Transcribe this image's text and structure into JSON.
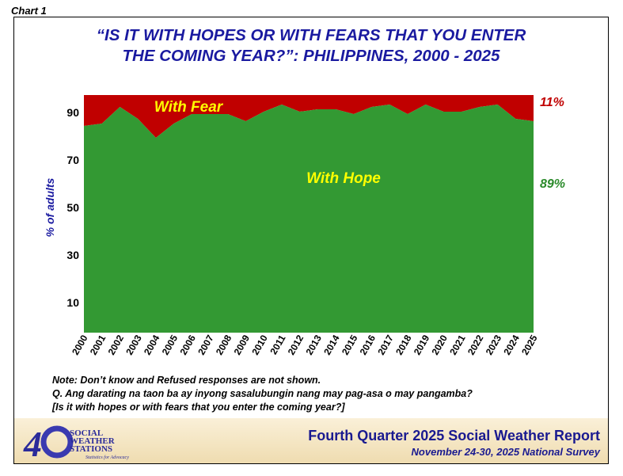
{
  "chart_label": "Chart 1",
  "chart_data": {
    "type": "area",
    "title": "“IS IT WITH HOPES OR WITH FEARS THAT YOU ENTER THE COMING YEAR?”: PHILIPPINES, 2000 - 2025",
    "title_lines": [
      "“IS IT WITH HOPES OR WITH FEARS THAT YOU ENTER",
      "THE COMING YEAR?”: PHILIPPINES, 2000 - 2025"
    ],
    "ylabel": "% of adults",
    "yticks": [
      10,
      30,
      50,
      70,
      90
    ],
    "ylim": [
      0,
      100
    ],
    "categories": [
      "2000",
      "2001",
      "2002",
      "2003",
      "2004",
      "2005",
      "2006",
      "2007",
      "2008",
      "2009",
      "2010",
      "2011",
      "2012",
      "2013",
      "2014",
      "2015",
      "2016",
      "2017",
      "2018",
      "2019",
      "2020",
      "2021",
      "2022",
      "2023",
      "2024",
      "2025"
    ],
    "series": [
      {
        "name": "With Hope",
        "color": "#339933",
        "values": [
          87,
          88,
          95,
          90,
          82,
          88,
          92,
          92,
          92,
          89,
          93,
          96,
          93,
          94,
          94,
          92,
          95,
          96,
          92,
          96,
          93,
          93,
          95,
          96,
          90,
          89
        ]
      },
      {
        "name": "With Fear",
        "color": "#c00000",
        "values": [
          13,
          12,
          5,
          10,
          18,
          12,
          8,
          8,
          8,
          11,
          7,
          4,
          7,
          6,
          6,
          8,
          5,
          4,
          8,
          4,
          7,
          7,
          5,
          4,
          10,
          11
        ]
      }
    ],
    "end_labels": {
      "fear": "11%",
      "hope": "89%"
    },
    "grid": false
  },
  "notes": [
    "Note: Don’t know and Refused responses are not shown.",
    "Q. Ang darating na taon ba ay inyong sasalubungin nang may pag-asa o may pangamba?",
    "[Is it with hopes or with fears that you enter the coming year?]"
  ],
  "footer": {
    "report": "Fourth Quarter 2025 Social Weather Report",
    "survey": "November 24-30, 2025 National Survey",
    "logo_text": "40 SOCIAL WEATHER STATIONS Statistics for Advocacy"
  }
}
